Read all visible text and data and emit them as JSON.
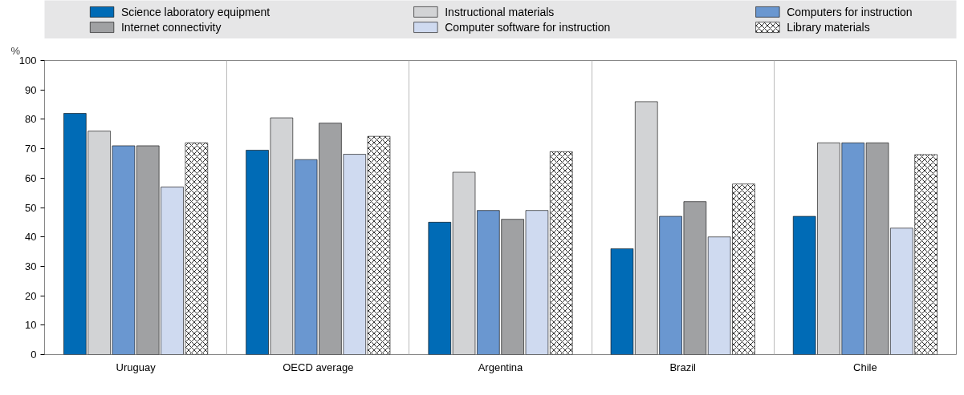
{
  "chart_data": {
    "type": "bar",
    "ylabel": "%",
    "categories": [
      "Uruguay",
      "OECD average",
      "Argentina",
      "Brazil",
      "Chile"
    ],
    "series": [
      {
        "name": "Science laboratory equipment",
        "color": "#006bb6",
        "values": [
          82,
          69.5,
          45,
          36,
          47
        ]
      },
      {
        "name": "Instructional materials",
        "color": "#d2d3d5",
        "values": [
          76,
          80.5,
          62,
          86,
          72
        ]
      },
      {
        "name": "Computers for instruction",
        "color": "#6a97d0",
        "values": [
          71,
          66.3,
          49,
          47,
          72
        ]
      },
      {
        "name": "Internet connectivity",
        "color": "#a0a1a3",
        "values": [
          71,
          78.7,
          46,
          52,
          72
        ]
      },
      {
        "name": "Computer software for instruction",
        "color": "#cfdaf0",
        "values": [
          57,
          68.1,
          49,
          40,
          43
        ]
      },
      {
        "name": "Library materials",
        "color": "#ffffff",
        "values": [
          72,
          74.2,
          69,
          58,
          68
        ]
      }
    ],
    "ylim": [
      0,
      100
    ],
    "yticks": [
      0,
      10,
      20,
      30,
      40,
      50,
      60,
      70,
      80,
      90,
      100
    ],
    "grid": "x",
    "legend": "top"
  }
}
